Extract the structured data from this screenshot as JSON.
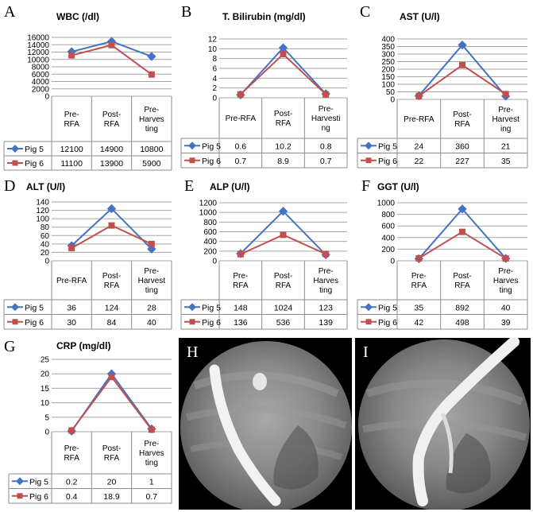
{
  "colors": {
    "pig5": "#4472C4",
    "pig6": "#C0504D",
    "grid": "#a6a6a6",
    "border": "#8c8c8c"
  },
  "chart_data": [
    {
      "id": "A",
      "type": "line",
      "letter": "A",
      "title": "WBC (/dl)",
      "categories": [
        "Pre-\nRFA",
        "Post-\nRFA",
        "Pre-\nHarves\nting"
      ],
      "series": [
        {
          "name": "Pig 5",
          "values": [
            12100,
            14900,
            10800
          ],
          "labels": [
            "12100",
            "14900",
            "10800"
          ]
        },
        {
          "name": "Pig 6",
          "values": [
            11100,
            13900,
            5900
          ],
          "labels": [
            "11100",
            "13900",
            "5900"
          ]
        }
      ],
      "ylim": [
        0,
        16000
      ],
      "ystep": 2000,
      "yticks": [
        "0",
        "2000",
        "4000",
        "6000",
        "8000",
        "10000",
        "12000",
        "14000",
        "16000"
      ]
    },
    {
      "id": "B",
      "type": "line",
      "letter": "B",
      "title": "T. Bilirubin (mg/dl)",
      "categories": [
        "Pre-RFA",
        "Post-\nRFA",
        "Pre-\nHarvesti\nng"
      ],
      "series": [
        {
          "name": "Pig 5",
          "values": [
            0.6,
            10.2,
            0.8
          ],
          "labels": [
            "0.6",
            "10.2",
            "0.8"
          ]
        },
        {
          "name": "Pig 6",
          "values": [
            0.7,
            8.9,
            0.7
          ],
          "labels": [
            "0.7",
            "8.9",
            "0.7"
          ]
        }
      ],
      "ylim": [
        0,
        12
      ],
      "ystep": 2,
      "yticks": [
        "0",
        "2",
        "4",
        "6",
        "8",
        "10",
        "12"
      ]
    },
    {
      "id": "C",
      "type": "line",
      "letter": "C",
      "title": "AST (U/l)",
      "categories": [
        "Pre-RFA",
        "Post-\nRFA",
        "Pre-\nHarvest\ning"
      ],
      "series": [
        {
          "name": "Pig 5",
          "values": [
            24,
            360,
            21
          ],
          "labels": [
            "24",
            "360",
            "21"
          ]
        },
        {
          "name": "Pig 6",
          "values": [
            22,
            227,
            35
          ],
          "labels": [
            "22",
            "227",
            "35"
          ]
        }
      ],
      "ylim": [
        0,
        400
      ],
      "ystep": 50,
      "yticks": [
        "0",
        "50",
        "100",
        "150",
        "200",
        "250",
        "300",
        "350",
        "400"
      ]
    },
    {
      "id": "D",
      "type": "line",
      "letter": "D",
      "title": "ALT (U/l)",
      "categories": [
        "Pre-RFA",
        "Post-\nRFA",
        "Pre-\nHarvest\nting"
      ],
      "series": [
        {
          "name": "Pig 5",
          "values": [
            36,
            124,
            28
          ],
          "labels": [
            "36",
            "124",
            "28"
          ]
        },
        {
          "name": "Pig 6",
          "values": [
            30,
            84,
            40
          ],
          "labels": [
            "30",
            "84",
            "40"
          ]
        }
      ],
      "ylim": [
        0,
        140
      ],
      "ystep": 20,
      "yticks": [
        "0",
        "20",
        "40",
        "60",
        "80",
        "100",
        "120",
        "140"
      ]
    },
    {
      "id": "E",
      "type": "line",
      "letter": "E",
      "title": "ALP (U/l)",
      "categories": [
        "Pre-\nRFA",
        "Post-\nRFA",
        "Pre-\nHarves\nting"
      ],
      "series": [
        {
          "name": "Pig 5",
          "values": [
            148,
            1024,
            123
          ],
          "labels": [
            "148",
            "1024",
            "123"
          ]
        },
        {
          "name": "Pig 6",
          "values": [
            136,
            536,
            139
          ],
          "labels": [
            "136",
            "536",
            "139"
          ]
        }
      ],
      "ylim": [
        0,
        1200
      ],
      "ystep": 200,
      "yticks": [
        "0",
        "200",
        "400",
        "600",
        "800",
        "1000",
        "1200"
      ]
    },
    {
      "id": "F",
      "type": "line",
      "letter": "F",
      "title": "GGT (U/l)",
      "categories": [
        "Pre-\nRFA",
        "Post-\nRFA",
        "Pre-\nHarves\nting"
      ],
      "series": [
        {
          "name": "Pig 5",
          "values": [
            35,
            892,
            40
          ],
          "labels": [
            "35",
            "892",
            "40"
          ]
        },
        {
          "name": "Pig 6",
          "values": [
            42,
            498,
            39
          ],
          "labels": [
            "42",
            "498",
            "39"
          ]
        }
      ],
      "ylim": [
        0,
        1000
      ],
      "ystep": 200,
      "yticks": [
        "0",
        "200",
        "400",
        "600",
        "800",
        "1000"
      ]
    },
    {
      "id": "G",
      "type": "line",
      "letter": "G",
      "title": "CRP (mg/dl)",
      "categories": [
        "Pre-\nRFA",
        "Post-\nRFA",
        "Pre-\nHarves\nting"
      ],
      "series": [
        {
          "name": "Pig 5",
          "values": [
            0.2,
            20,
            1
          ],
          "labels": [
            "0.2",
            "20",
            "1"
          ]
        },
        {
          "name": "Pig 6",
          "values": [
            0.4,
            18.9,
            0.7
          ],
          "labels": [
            "0.4",
            "18.9",
            "0.7"
          ]
        }
      ],
      "ylim": [
        0,
        25
      ],
      "ystep": 5,
      "yticks": [
        "0",
        "5",
        "10",
        "15",
        "20",
        "25"
      ]
    }
  ],
  "photos": [
    {
      "id": "H",
      "letter": "H"
    },
    {
      "id": "I",
      "letter": "I"
    }
  ]
}
